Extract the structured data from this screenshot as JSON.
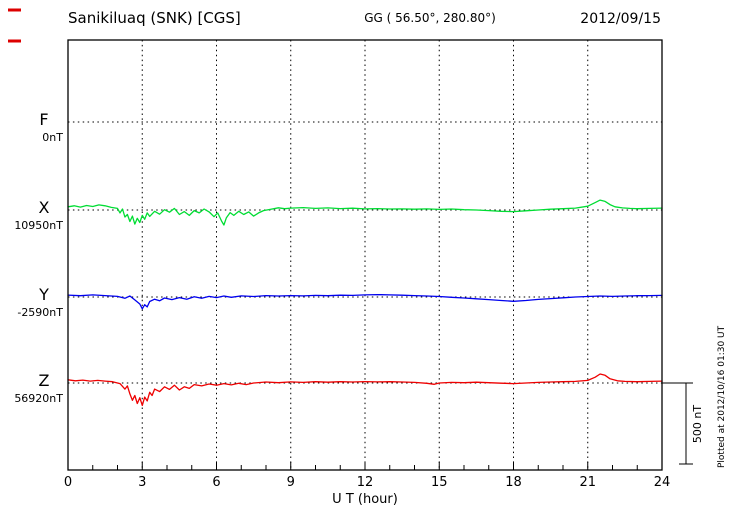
{
  "header": {
    "station": "Sanikiluaq (SNK)  [CGS]",
    "coords": "GG ( 56.50°, 280.80°)",
    "date": "2012/09/15"
  },
  "axis": {
    "xlabel": "U T (hour)",
    "ticks": [
      0,
      3,
      6,
      9,
      12,
      15,
      18,
      21,
      24
    ]
  },
  "scale_bar": {
    "label": "500 nT"
  },
  "note": {
    "plotted": "Plotted at 2012/10/16 01:30 UT"
  },
  "chart_data": {
    "type": "line",
    "title": "Sanikiluaq (SNK) [CGS] magnetogram 2012/09/15",
    "xlabel": "U T (hour)",
    "x_range": [
      0,
      24
    ],
    "x_ticks": [
      0,
      3,
      6,
      9,
      12,
      15,
      18,
      21,
      24
    ],
    "grid": true,
    "scale_bar_nT": 500,
    "series": [
      {
        "name": "F",
        "baseline_label": "0nT",
        "color": "#ffaa00",
        "unit": "nT",
        "points": []
      },
      {
        "name": "X",
        "baseline_label": "10950nT",
        "color": "#00dd33",
        "unit": "nT",
        "points": [
          [
            0,
            20
          ],
          [
            0.25,
            26
          ],
          [
            0.5,
            18
          ],
          [
            0.75,
            28
          ],
          [
            1,
            22
          ],
          [
            1.25,
            32
          ],
          [
            1.5,
            26
          ],
          [
            1.75,
            16
          ],
          [
            2,
            10
          ],
          [
            2.1,
            -18
          ],
          [
            2.2,
            6
          ],
          [
            2.3,
            -44
          ],
          [
            2.4,
            -28
          ],
          [
            2.5,
            -72
          ],
          [
            2.6,
            -38
          ],
          [
            2.7,
            -88
          ],
          [
            2.8,
            -52
          ],
          [
            2.9,
            -78
          ],
          [
            3,
            -34
          ],
          [
            3.1,
            -58
          ],
          [
            3.2,
            -18
          ],
          [
            3.3,
            -40
          ],
          [
            3.5,
            -8
          ],
          [
            3.7,
            -26
          ],
          [
            3.9,
            2
          ],
          [
            4.1,
            -14
          ],
          [
            4.3,
            10
          ],
          [
            4.5,
            -28
          ],
          [
            4.7,
            -10
          ],
          [
            4.9,
            -34
          ],
          [
            5.1,
            -4
          ],
          [
            5.3,
            -18
          ],
          [
            5.5,
            6
          ],
          [
            5.7,
            -12
          ],
          [
            5.9,
            -42
          ],
          [
            6.05,
            -18
          ],
          [
            6.2,
            -68
          ],
          [
            6.3,
            -94
          ],
          [
            6.4,
            -48
          ],
          [
            6.55,
            -16
          ],
          [
            6.7,
            -34
          ],
          [
            6.9,
            -8
          ],
          [
            7.1,
            -28
          ],
          [
            7.3,
            -12
          ],
          [
            7.5,
            -38
          ],
          [
            7.7,
            -18
          ],
          [
            7.9,
            -4
          ],
          [
            8.25,
            6
          ],
          [
            8.5,
            14
          ],
          [
            8.75,
            8
          ],
          [
            9,
            12
          ],
          [
            9.5,
            15
          ],
          [
            10,
            10
          ],
          [
            10.5,
            13
          ],
          [
            11,
            9
          ],
          [
            11.5,
            11
          ],
          [
            12,
            7
          ],
          [
            12.5,
            9
          ],
          [
            13,
            6
          ],
          [
            13.5,
            7
          ],
          [
            14,
            5
          ],
          [
            14.5,
            7
          ],
          [
            15,
            4
          ],
          [
            15.5,
            6
          ],
          [
            16,
            2
          ],
          [
            16.5,
            0
          ],
          [
            17,
            -4
          ],
          [
            17.5,
            -8
          ],
          [
            18,
            -10
          ],
          [
            18.5,
            -5
          ],
          [
            19,
            0
          ],
          [
            19.5,
            5
          ],
          [
            20,
            8
          ],
          [
            20.5,
            12
          ],
          [
            21,
            24
          ],
          [
            21.3,
            46
          ],
          [
            21.5,
            62
          ],
          [
            21.7,
            54
          ],
          [
            21.9,
            34
          ],
          [
            22.1,
            20
          ],
          [
            22.4,
            13
          ],
          [
            22.7,
            10
          ],
          [
            23,
            8
          ],
          [
            23.5,
            10
          ],
          [
            24,
            12
          ]
        ]
      },
      {
        "name": "Y",
        "baseline_label": "-2590nT",
        "color": "#0000ee",
        "unit": "nT",
        "points": [
          [
            0,
            12
          ],
          [
            0.5,
            8
          ],
          [
            1,
            13
          ],
          [
            1.5,
            9
          ],
          [
            2,
            4
          ],
          [
            2.3,
            -8
          ],
          [
            2.5,
            6
          ],
          [
            2.7,
            -18
          ],
          [
            2.9,
            -44
          ],
          [
            3,
            -74
          ],
          [
            3.1,
            -48
          ],
          [
            3.2,
            -62
          ],
          [
            3.3,
            -28
          ],
          [
            3.5,
            -14
          ],
          [
            3.7,
            -24
          ],
          [
            3.9,
            -6
          ],
          [
            4.2,
            -16
          ],
          [
            4.5,
            -4
          ],
          [
            4.8,
            -14
          ],
          [
            5.1,
            2
          ],
          [
            5.4,
            -8
          ],
          [
            5.7,
            4
          ],
          [
            6,
            -4
          ],
          [
            6.3,
            6
          ],
          [
            6.6,
            -2
          ],
          [
            7,
            7
          ],
          [
            7.5,
            3
          ],
          [
            8,
            9
          ],
          [
            8.5,
            6
          ],
          [
            9,
            9
          ],
          [
            9.5,
            7
          ],
          [
            10,
            10
          ],
          [
            10.5,
            8
          ],
          [
            11,
            11
          ],
          [
            11.5,
            10
          ],
          [
            12,
            13
          ],
          [
            12.5,
            15
          ],
          [
            13,
            13
          ],
          [
            13.5,
            11
          ],
          [
            14,
            9
          ],
          [
            14.5,
            6
          ],
          [
            15,
            3
          ],
          [
            15.5,
            -2
          ],
          [
            16,
            -6
          ],
          [
            16.5,
            -11
          ],
          [
            17,
            -16
          ],
          [
            17.5,
            -22
          ],
          [
            18,
            -27
          ],
          [
            18.5,
            -22
          ],
          [
            19,
            -15
          ],
          [
            19.5,
            -10
          ],
          [
            20,
            -5
          ],
          [
            20.5,
            0
          ],
          [
            21,
            3
          ],
          [
            21.5,
            6
          ],
          [
            22,
            4
          ],
          [
            22.5,
            6
          ],
          [
            23,
            8
          ],
          [
            23.5,
            9
          ],
          [
            24,
            10
          ]
        ]
      },
      {
        "name": "Z",
        "baseline_label": "56920nT",
        "color": "#ee0000",
        "unit": "nT",
        "points": [
          [
            0,
            20
          ],
          [
            0.3,
            14
          ],
          [
            0.6,
            18
          ],
          [
            0.9,
            12
          ],
          [
            1.2,
            16
          ],
          [
            1.5,
            12
          ],
          [
            1.8,
            8
          ],
          [
            2.1,
            -4
          ],
          [
            2.3,
            -38
          ],
          [
            2.4,
            -18
          ],
          [
            2.5,
            -68
          ],
          [
            2.6,
            -108
          ],
          [
            2.7,
            -78
          ],
          [
            2.8,
            -128
          ],
          [
            2.9,
            -92
          ],
          [
            3,
            -140
          ],
          [
            3.1,
            -88
          ],
          [
            3.2,
            -112
          ],
          [
            3.3,
            -58
          ],
          [
            3.4,
            -78
          ],
          [
            3.5,
            -38
          ],
          [
            3.7,
            -54
          ],
          [
            3.9,
            -24
          ],
          [
            4.1,
            -40
          ],
          [
            4.3,
            -14
          ],
          [
            4.5,
            -44
          ],
          [
            4.7,
            -24
          ],
          [
            4.9,
            -34
          ],
          [
            5.1,
            -10
          ],
          [
            5.4,
            -18
          ],
          [
            5.7,
            -6
          ],
          [
            6,
            -14
          ],
          [
            6.3,
            -4
          ],
          [
            6.6,
            -12
          ],
          [
            6.9,
            -2
          ],
          [
            7.2,
            -10
          ],
          [
            7.5,
            0
          ],
          [
            8,
            6
          ],
          [
            8.5,
            2
          ],
          [
            9,
            7
          ],
          [
            9.5,
            4
          ],
          [
            10,
            8
          ],
          [
            10.5,
            5
          ],
          [
            11,
            8
          ],
          [
            11.5,
            6
          ],
          [
            12,
            9
          ],
          [
            12.5,
            7
          ],
          [
            13,
            8
          ],
          [
            13.5,
            6
          ],
          [
            14,
            4
          ],
          [
            14.5,
            -2
          ],
          [
            14.8,
            -8
          ],
          [
            15,
            0
          ],
          [
            15.5,
            4
          ],
          [
            16,
            2
          ],
          [
            16.5,
            5
          ],
          [
            17,
            2
          ],
          [
            17.5,
            -1
          ],
          [
            18,
            -4
          ],
          [
            18.5,
            0
          ],
          [
            19,
            4
          ],
          [
            19.5,
            6
          ],
          [
            20,
            8
          ],
          [
            20.5,
            10
          ],
          [
            21,
            16
          ],
          [
            21.3,
            36
          ],
          [
            21.5,
            56
          ],
          [
            21.7,
            48
          ],
          [
            21.9,
            26
          ],
          [
            22.2,
            14
          ],
          [
            22.5,
            10
          ],
          [
            23,
            8
          ],
          [
            23.5,
            10
          ],
          [
            24,
            12
          ]
        ]
      }
    ]
  }
}
